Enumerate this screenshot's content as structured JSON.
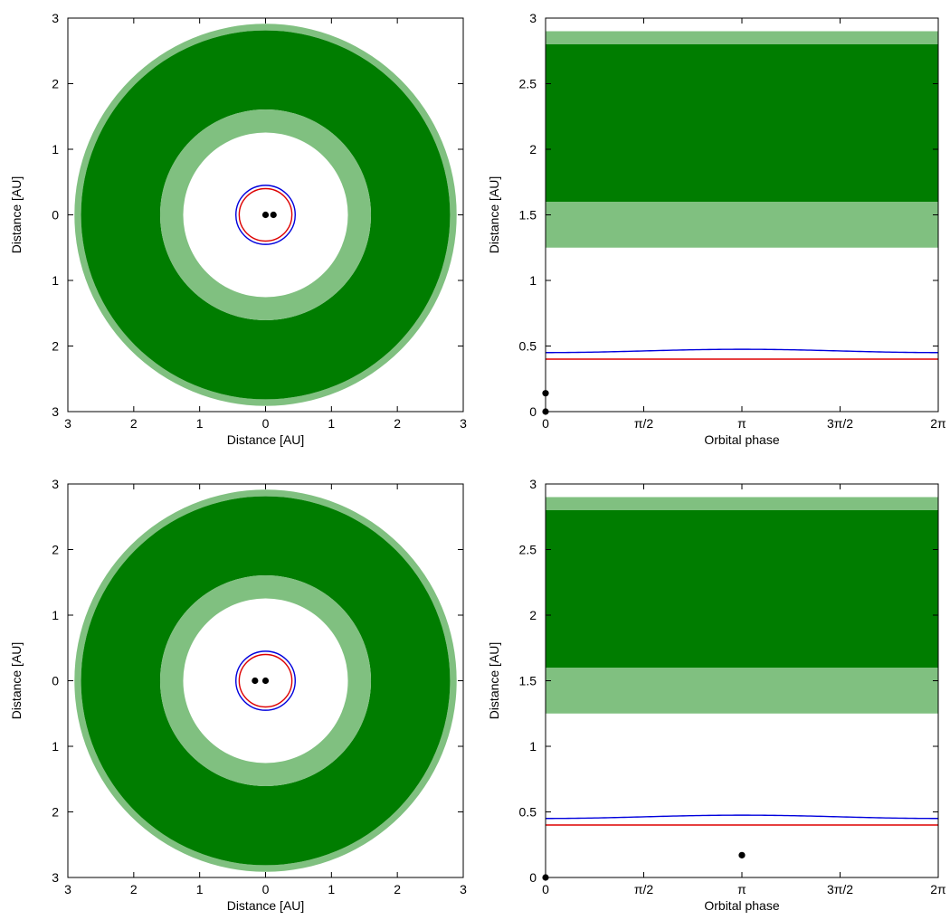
{
  "colors": {
    "dark_green": "#007d00",
    "light_green": "#80c080",
    "blue": "#0000dd",
    "red": "#dd0000",
    "black": "#000000"
  },
  "chart_data": [
    {
      "type": "scatter",
      "panel": "top-left",
      "xlabel": "Distance [AU]",
      "ylabel": "Distance [AU]",
      "xlim": [
        -3,
        3
      ],
      "ylim": [
        -3,
        3
      ],
      "xticks": [
        "3",
        "2",
        "1",
        "0",
        "1",
        "2",
        "3"
      ],
      "yticks": [
        "3",
        "2",
        "1",
        "0",
        "1",
        "2",
        "3"
      ],
      "annuli": [
        {
          "name": "outer_light",
          "r_inner": 2.8,
          "r_outer": 2.9,
          "color": "light_green"
        },
        {
          "name": "dark_disk",
          "r_inner": 1.6,
          "r_outer": 2.8,
          "color": "dark_green"
        },
        {
          "name": "inner_light",
          "r_inner": 1.25,
          "r_outer": 1.6,
          "color": "light_green"
        }
      ],
      "circles": [
        {
          "r": 0.45,
          "color": "blue"
        },
        {
          "r": 0.4,
          "color": "red"
        }
      ],
      "points": [
        [
          0.0,
          0.0
        ],
        [
          0.12,
          0.0
        ]
      ]
    },
    {
      "type": "line",
      "panel": "top-right",
      "xlabel": "Orbital phase",
      "ylabel": "Distance [AU]",
      "xlim": [
        0,
        6.2832
      ],
      "ylim": [
        0,
        3
      ],
      "xticks": [
        "0",
        "π/2",
        "π",
        "3π/2",
        "2π"
      ],
      "yticks": [
        "0",
        "0.5",
        "1",
        "1.5",
        "2",
        "2.5",
        "3"
      ],
      "bands": [
        {
          "y0": 1.25,
          "y1": 2.9,
          "color": "light_green"
        },
        {
          "y0": 1.6,
          "y1": 2.8,
          "color": "dark_green"
        }
      ],
      "blue_line": {
        "base": 0.45,
        "amplitude": 0.025
      },
      "red_line": 0.4,
      "points": [
        [
          0,
          0.0
        ],
        [
          0,
          0.14
        ]
      ]
    },
    {
      "type": "scatter",
      "panel": "bottom-left",
      "xlabel": "Distance [AU]",
      "ylabel": "Distance [AU]",
      "xlim": [
        -3,
        3
      ],
      "ylim": [
        -3,
        3
      ],
      "xticks": [
        "3",
        "2",
        "1",
        "0",
        "1",
        "2",
        "3"
      ],
      "yticks": [
        "3",
        "2",
        "1",
        "0",
        "1",
        "2",
        "3"
      ],
      "annuli": [
        {
          "name": "outer_light",
          "r_inner": 2.8,
          "r_outer": 2.9,
          "color": "light_green"
        },
        {
          "name": "dark_disk",
          "r_inner": 1.6,
          "r_outer": 2.8,
          "color": "dark_green"
        },
        {
          "name": "inner_light",
          "r_inner": 1.25,
          "r_outer": 1.6,
          "color": "light_green"
        }
      ],
      "circles": [
        {
          "r": 0.45,
          "color": "blue"
        },
        {
          "r": 0.4,
          "color": "red"
        }
      ],
      "points": [
        [
          -0.16,
          0.0
        ],
        [
          0.0,
          0.0
        ]
      ]
    },
    {
      "type": "line",
      "panel": "bottom-right",
      "xlabel": "Orbital phase",
      "ylabel": "Distance [AU]",
      "xlim": [
        0,
        6.2832
      ],
      "ylim": [
        0,
        3
      ],
      "xticks": [
        "0",
        "π/2",
        "π",
        "3π/2",
        "2π"
      ],
      "yticks": [
        "0",
        "0.5",
        "1",
        "1.5",
        "2",
        "2.5",
        "3"
      ],
      "bands": [
        {
          "y0": 1.25,
          "y1": 2.9,
          "color": "light_green"
        },
        {
          "y0": 1.6,
          "y1": 2.8,
          "color": "dark_green"
        }
      ],
      "blue_line": {
        "base": 0.45,
        "amplitude": 0.025
      },
      "red_line": 0.4,
      "points": [
        [
          0,
          0.0
        ],
        [
          3.1416,
          0.17
        ]
      ]
    }
  ]
}
